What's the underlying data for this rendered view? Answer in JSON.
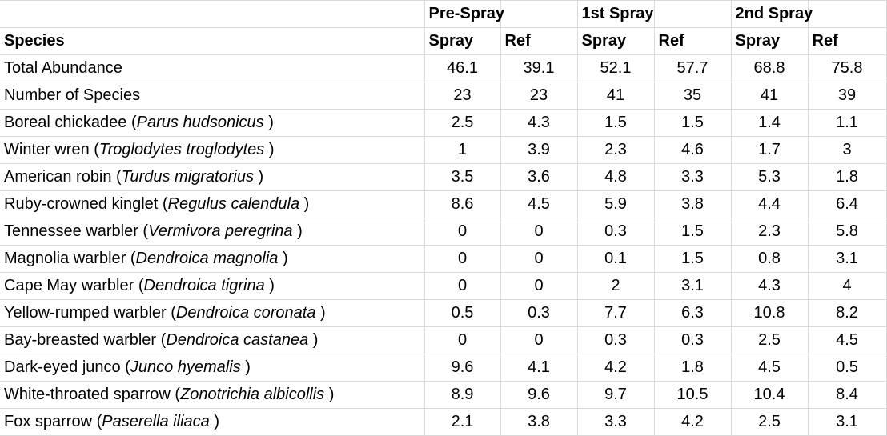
{
  "headers": {
    "groups": [
      "Pre-Spray",
      "1st Spray",
      "2nd Spray"
    ],
    "species": "Species",
    "sub": [
      "Spray",
      "Ref",
      "Spray",
      "Ref",
      "Spray",
      "Ref"
    ]
  },
  "rows": [
    {
      "label": "Total Abundance",
      "sci": "",
      "suffix": "",
      "values": [
        "46.1",
        "39.1",
        "52.1",
        "57.7",
        "68.8",
        "75.8"
      ]
    },
    {
      "label": "Number of Species",
      "sci": "",
      "suffix": "",
      "values": [
        "23",
        "23",
        "41",
        "35",
        "41",
        "39"
      ]
    },
    {
      "label": "Boreal chickadee (",
      "sci": "Parus hudsonicus",
      "suffix": " )",
      "values": [
        "2.5",
        "4.3",
        "1.5",
        "1.5",
        "1.4",
        "1.1"
      ]
    },
    {
      "label": "Winter wren (",
      "sci": "Troglodytes troglodytes",
      "suffix": " )",
      "values": [
        "1",
        "3.9",
        "2.3",
        "4.6",
        "1.7",
        "3"
      ]
    },
    {
      "label": "American robin (",
      "sci": "Turdus migratorius",
      "suffix": " )",
      "values": [
        "3.5",
        "3.6",
        "4.8",
        "3.3",
        "5.3",
        "1.8"
      ]
    },
    {
      "label": "Ruby-crowned kinglet (",
      "sci": "Regulus calendula",
      "suffix": " )",
      "values": [
        "8.6",
        "4.5",
        "5.9",
        "3.8",
        "4.4",
        "6.4"
      ]
    },
    {
      "label": "Tennessee warbler (",
      "sci": "Vermivora peregrina",
      "suffix": " )",
      "values": [
        "0",
        "0",
        "0.3",
        "1.5",
        "2.3",
        "5.8"
      ]
    },
    {
      "label": "Magnolia warbler (",
      "sci": "Dendroica magnolia",
      "suffix": " )",
      "values": [
        "0",
        "0",
        "0.1",
        "1.5",
        "0.8",
        "3.1"
      ]
    },
    {
      "label": "Cape May warbler (",
      "sci": "Dendroica tigrina",
      "suffix": " )",
      "values": [
        "0",
        "0",
        "2",
        "3.1",
        "4.3",
        "4"
      ]
    },
    {
      "label": "Yellow-rumped warbler (",
      "sci": "Dendroica coronata",
      "suffix": " )",
      "values": [
        "0.5",
        "0.3",
        "7.7",
        "6.3",
        "10.8",
        "8.2"
      ]
    },
    {
      "label": "Bay-breasted warbler (",
      "sci": "Dendroica castanea",
      "suffix": " )",
      "values": [
        "0",
        "0",
        "0.3",
        "0.3",
        "2.5",
        "4.5"
      ]
    },
    {
      "label": "Dark-eyed junco (",
      "sci": "Junco hyemalis",
      "suffix": " )",
      "values": [
        "9.6",
        "4.1",
        "4.2",
        "1.8",
        "4.5",
        "0.5"
      ]
    },
    {
      "label": "White-throated sparrow (",
      "sci": "Zonotrichia albicollis",
      "suffix": " )",
      "values": [
        "8.9",
        "9.6",
        "9.7",
        "10.5",
        "10.4",
        "8.4"
      ]
    },
    {
      "label": "Fox sparrow (",
      "sci": "Paserella iliaca",
      "suffix": " )",
      "values": [
        "2.1",
        "3.8",
        "3.3",
        "4.2",
        "2.5",
        "3.1"
      ]
    }
  ]
}
